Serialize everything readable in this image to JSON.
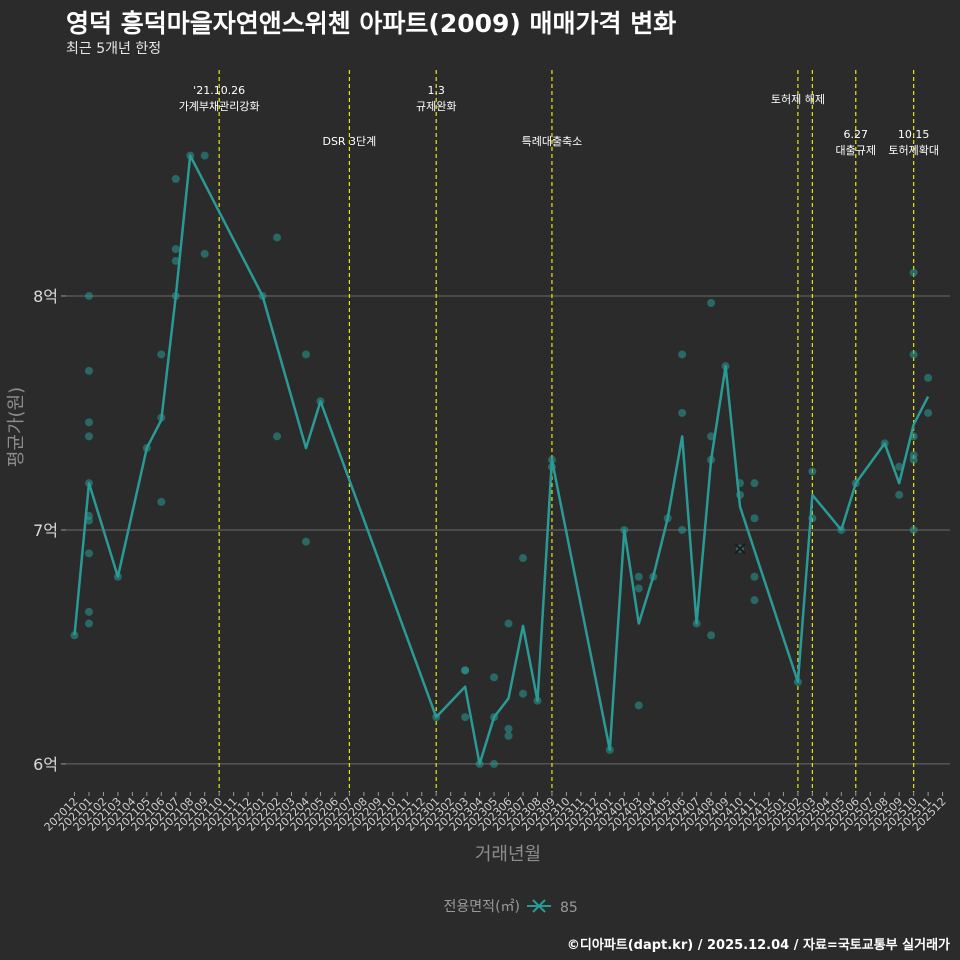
{
  "header": {
    "title": "영덕 흥덕마을자연앤스위첸 아파트(2009) 매매가격 변화",
    "subtitle": "최근 5개년 한정"
  },
  "caption": "©디아파트(dapt.kr) / 2025.12.04 / 자료=국토교통부 실거래가",
  "colors": {
    "background": "#2b2b2b",
    "series": "#2a9a96",
    "event_line": "#e6e619",
    "grid": "#6b6b6b",
    "axis_text": "#bdbdbd"
  },
  "chart_data": {
    "type": "line",
    "title": "영덕 흥덕마을자연앤스위첸 아파트(2009) 매매가격 변화",
    "xlabel": "거래년월",
    "ylabel": "평균가(원)",
    "y_range": [
      5.88,
      9.0
    ],
    "y_ticks": [
      {
        "value": 6,
        "label": "6억"
      },
      {
        "value": 7,
        "label": "7억"
      },
      {
        "value": 8,
        "label": "8억"
      }
    ],
    "x_ticks": [
      "202012",
      "202101",
      "202102",
      "202103",
      "202104",
      "202105",
      "202106",
      "202107",
      "202108",
      "202109",
      "202110",
      "202111",
      "202112",
      "202201",
      "202202",
      "202203",
      "202204",
      "202205",
      "202206",
      "202207",
      "202208",
      "202209",
      "202210",
      "202211",
      "202212",
      "202301",
      "202302",
      "202303",
      "202304",
      "202305",
      "202306",
      "202307",
      "202308",
      "202309",
      "202310",
      "202311",
      "202312",
      "202401",
      "202402",
      "202403",
      "202404",
      "202405",
      "202406",
      "202407",
      "202408",
      "202409",
      "202410",
      "202411",
      "202412",
      "202501",
      "202502",
      "202503",
      "202504",
      "202505",
      "202506",
      "202507",
      "202508",
      "202509",
      "202510",
      "202511",
      "202512"
    ],
    "legend": {
      "title": "전용면적(㎡)",
      "items": [
        "85"
      ],
      "position": "bottom"
    },
    "series": [
      {
        "name": "85",
        "line": [
          [
            "202012",
            6.55
          ],
          [
            "202101",
            7.2
          ],
          [
            "202103",
            6.8
          ],
          [
            "202105",
            7.35
          ],
          [
            "202106",
            7.47
          ],
          [
            "202107",
            8.0
          ],
          [
            "202108",
            8.6
          ],
          [
            "202201",
            8.0
          ],
          [
            "202204",
            7.35
          ],
          [
            "202205",
            7.55
          ],
          [
            "202301",
            6.2
          ],
          [
            "202303",
            6.33
          ],
          [
            "202304",
            6.0
          ],
          [
            "202305",
            6.2
          ],
          [
            "202306",
            6.28
          ],
          [
            "202307",
            6.59
          ],
          [
            "202308",
            6.27
          ],
          [
            "202309",
            7.3
          ],
          [
            "202401",
            6.06
          ],
          [
            "202402",
            7.0
          ],
          [
            "202403",
            6.6
          ],
          [
            "202404",
            6.8
          ],
          [
            "202405",
            7.05
          ],
          [
            "202406",
            7.4
          ],
          [
            "202407",
            6.6
          ],
          [
            "202408",
            7.3
          ],
          [
            "202409",
            7.7
          ],
          [
            "202410",
            7.1
          ],
          [
            "202502",
            6.35
          ],
          [
            "202503",
            7.15
          ],
          [
            "202505",
            7.0
          ],
          [
            "202506",
            7.2
          ],
          [
            "202508",
            7.37
          ],
          [
            "202509",
            7.2
          ],
          [
            "202510",
            7.45
          ],
          [
            "202511",
            7.57
          ]
        ],
        "points": [
          [
            "202012",
            6.55
          ],
          [
            "202101",
            8.0
          ],
          [
            "202101",
            7.68
          ],
          [
            "202101",
            7.46
          ],
          [
            "202101",
            7.4
          ],
          [
            "202101",
            7.2
          ],
          [
            "202101",
            7.06
          ],
          [
            "202101",
            7.04
          ],
          [
            "202101",
            6.9
          ],
          [
            "202101",
            6.65
          ],
          [
            "202101",
            6.6
          ],
          [
            "202103",
            6.8
          ],
          [
            "202105",
            7.35
          ],
          [
            "202106",
            7.75
          ],
          [
            "202106",
            7.48
          ],
          [
            "202106",
            7.12
          ],
          [
            "202107",
            8.5
          ],
          [
            "202107",
            8.2
          ],
          [
            "202107",
            8.15
          ],
          [
            "202107",
            8.0
          ],
          [
            "202108",
            8.6
          ],
          [
            "202109",
            8.6
          ],
          [
            "202109",
            8.18
          ],
          [
            "202201",
            8.0
          ],
          [
            "202202",
            8.25
          ],
          [
            "202202",
            7.4
          ],
          [
            "202204",
            7.75
          ],
          [
            "202204",
            6.95
          ],
          [
            "202205",
            7.55
          ],
          [
            "202301",
            6.2
          ],
          [
            "202303",
            6.4
          ],
          [
            "202303",
            6.4
          ],
          [
            "202303",
            6.2
          ],
          [
            "202304",
            6.0
          ],
          [
            "202305",
            6.37
          ],
          [
            "202305",
            6.2
          ],
          [
            "202305",
            6.0
          ],
          [
            "202306",
            6.6
          ],
          [
            "202306",
            6.15
          ],
          [
            "202306",
            6.12
          ],
          [
            "202307",
            6.88
          ],
          [
            "202307",
            6.3
          ],
          [
            "202308",
            6.27
          ],
          [
            "202309",
            7.3
          ],
          [
            "202309",
            7.27
          ],
          [
            "202401",
            6.06
          ],
          [
            "202402",
            7.0
          ],
          [
            "202403",
            6.8
          ],
          [
            "202403",
            6.75
          ],
          [
            "202403",
            6.25
          ],
          [
            "202404",
            6.8
          ],
          [
            "202405",
            7.05
          ],
          [
            "202406",
            7.75
          ],
          [
            "202406",
            7.5
          ],
          [
            "202406",
            7.0
          ],
          [
            "202407",
            6.6
          ],
          [
            "202408",
            7.97
          ],
          [
            "202408",
            7.4
          ],
          [
            "202408",
            7.3
          ],
          [
            "202408",
            6.55
          ],
          [
            "202409",
            7.7
          ],
          [
            "202410",
            7.2
          ],
          [
            "202410",
            7.15
          ],
          [
            "202410",
            6.92
          ],
          [
            "202411",
            7.2
          ],
          [
            "202411",
            7.05
          ],
          [
            "202411",
            6.8
          ],
          [
            "202411",
            6.7
          ],
          [
            "202502",
            6.35
          ],
          [
            "202503",
            7.25
          ],
          [
            "202503",
            7.05
          ],
          [
            "202505",
            7.0
          ],
          [
            "202506",
            7.2
          ],
          [
            "202508",
            7.37
          ],
          [
            "202509",
            7.27
          ],
          [
            "202509",
            7.15
          ],
          [
            "202510",
            8.1
          ],
          [
            "202510",
            7.75
          ],
          [
            "202510",
            7.4
          ],
          [
            "202510",
            7.32
          ],
          [
            "202510",
            7.3
          ],
          [
            "202510",
            7.0
          ],
          [
            "202511",
            7.65
          ],
          [
            "202511",
            7.5
          ]
        ],
        "highlight": [
          "202410",
          6.92
        ]
      }
    ],
    "events": [
      {
        "x": "202110",
        "lines": [
          "'21.10.26",
          "가계부채관리강화"
        ],
        "row": 0
      },
      {
        "x": "202207",
        "lines": [
          "DSR 3단계"
        ],
        "row": 1
      },
      {
        "x": "202301",
        "lines": [
          "1.3",
          "규제완화"
        ],
        "row": 0
      },
      {
        "x": "202309",
        "lines": [
          "특례대출축소"
        ],
        "row": 1
      },
      {
        "x": "202502",
        "lines": [
          "토허제 해제"
        ],
        "row": 0
      },
      {
        "x": "202503",
        "lines": [],
        "row": 0
      },
      {
        "x": "202506",
        "lines": [
          "6.27",
          "대출규제"
        ],
        "row": 1
      },
      {
        "x": "202510",
        "lines": [
          "10.15",
          "토허제확대"
        ],
        "row": 1
      }
    ]
  }
}
